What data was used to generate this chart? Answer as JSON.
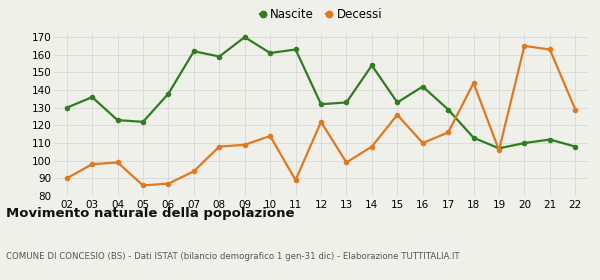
{
  "years": [
    "02",
    "03",
    "04",
    "05",
    "06",
    "07",
    "08",
    "09",
    "10",
    "11",
    "12",
    "13",
    "14",
    "15",
    "16",
    "17",
    "18",
    "19",
    "20",
    "21",
    "22"
  ],
  "nascite": [
    130,
    136,
    123,
    122,
    138,
    162,
    159,
    170,
    161,
    163,
    132,
    133,
    154,
    133,
    142,
    129,
    113,
    107,
    110,
    112,
    108
  ],
  "decessi": [
    90,
    98,
    99,
    86,
    87,
    94,
    108,
    109,
    114,
    89,
    122,
    99,
    108,
    126,
    110,
    116,
    144,
    106,
    165,
    163,
    129
  ],
  "nascite_color": "#2e7d1e",
  "decessi_color": "#e07820",
  "bg_color": "#f0f0eb",
  "grid_color": "#d8d8d8",
  "ylim": [
    80,
    172
  ],
  "yticks": [
    80,
    90,
    100,
    110,
    120,
    130,
    140,
    150,
    160,
    170
  ],
  "title": "Movimento naturale della popolazione",
  "subtitle": "COMUNE DI CONCESIO (BS) - Dati ISTAT (bilancio demografico 1 gen-31 dic) - Elaborazione TUTTITALIA.IT",
  "legend_nascite": "Nascite",
  "legend_decessi": "Decessi",
  "marker_size": 4,
  "line_width": 1.6
}
